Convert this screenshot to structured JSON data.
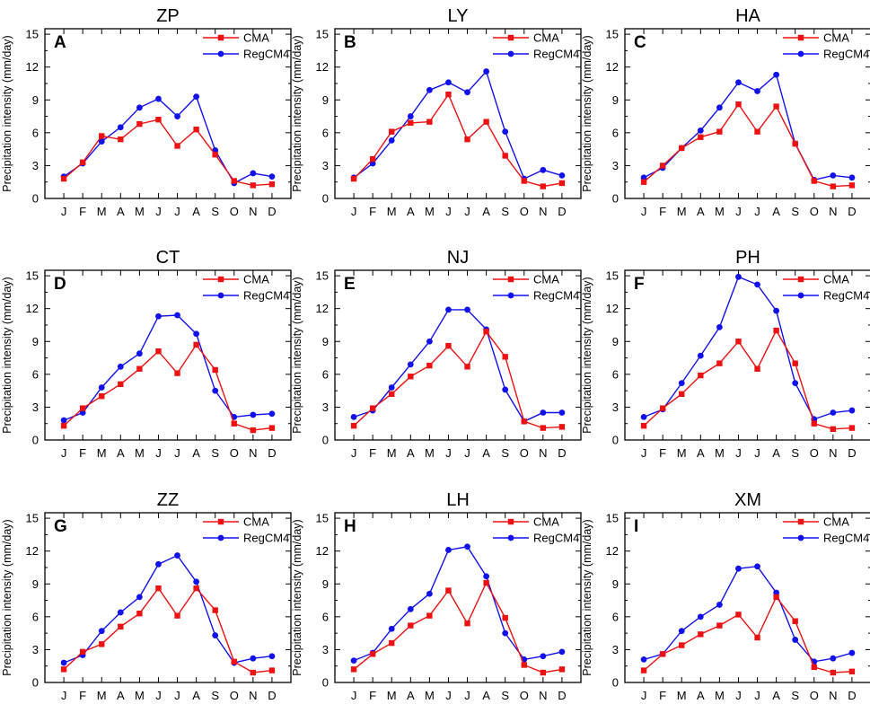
{
  "figure": {
    "months": [
      "J",
      "F",
      "M",
      "A",
      "M",
      "J",
      "J",
      "A",
      "S",
      "O",
      "N",
      "D"
    ],
    "ylabel": "Precipitation intensity (mm/day)",
    "yticks": [
      0,
      3,
      6,
      9,
      12,
      15
    ],
    "ylim": [
      0,
      15.5
    ],
    "colors": {
      "CMA": "#ee1111",
      "RegCM4": "#1111ee"
    }
  },
  "chart_data": [
    {
      "type": "line",
      "title": "ZP",
      "panel_letter": "A",
      "categories": [
        "J",
        "F",
        "M",
        "A",
        "M",
        "J",
        "J",
        "A",
        "S",
        "O",
        "N",
        "D"
      ],
      "series": [
        {
          "name": "CMA",
          "values": [
            1.8,
            3.3,
            5.7,
            5.4,
            6.8,
            7.2,
            4.8,
            6.3,
            4.0,
            1.6,
            1.2,
            1.3
          ]
        },
        {
          "name": "RegCM4",
          "values": [
            2.0,
            3.2,
            5.2,
            6.5,
            8.3,
            9.1,
            7.5,
            9.3,
            4.4,
            1.4,
            2.3,
            2.0
          ]
        }
      ]
    },
    {
      "type": "line",
      "title": "LY",
      "panel_letter": "B",
      "categories": [
        "J",
        "F",
        "M",
        "A",
        "M",
        "J",
        "J",
        "A",
        "S",
        "O",
        "N",
        "D"
      ],
      "series": [
        {
          "name": "CMA",
          "values": [
            1.8,
            3.6,
            6.1,
            6.9,
            7.0,
            9.5,
            5.4,
            7.0,
            3.9,
            1.6,
            1.1,
            1.4
          ]
        },
        {
          "name": "RegCM4",
          "values": [
            1.9,
            3.2,
            5.3,
            7.5,
            9.9,
            10.6,
            9.7,
            11.6,
            6.1,
            1.8,
            2.6,
            2.1
          ]
        }
      ]
    },
    {
      "type": "line",
      "title": "HA",
      "panel_letter": "C",
      "categories": [
        "J",
        "F",
        "M",
        "A",
        "M",
        "J",
        "J",
        "A",
        "S",
        "O",
        "N",
        "D"
      ],
      "series": [
        {
          "name": "CMA",
          "values": [
            1.5,
            3.0,
            4.6,
            5.6,
            6.1,
            8.6,
            6.1,
            8.4,
            5.0,
            1.6,
            1.1,
            1.2
          ]
        },
        {
          "name": "RegCM4",
          "values": [
            1.9,
            2.8,
            4.6,
            6.2,
            8.3,
            10.6,
            9.8,
            11.3,
            5.0,
            1.7,
            2.1,
            1.9
          ]
        }
      ]
    },
    {
      "type": "line",
      "title": "CT",
      "panel_letter": "D",
      "categories": [
        "J",
        "F",
        "M",
        "A",
        "M",
        "J",
        "J",
        "A",
        "S",
        "O",
        "N",
        "D"
      ],
      "series": [
        {
          "name": "CMA",
          "values": [
            1.3,
            2.9,
            4.0,
            5.1,
            6.5,
            8.1,
            6.1,
            8.7,
            6.4,
            1.5,
            0.9,
            1.1
          ]
        },
        {
          "name": "RegCM4",
          "values": [
            1.8,
            2.5,
            4.8,
            6.7,
            7.9,
            11.3,
            11.4,
            9.7,
            4.5,
            2.1,
            2.3,
            2.4
          ]
        }
      ]
    },
    {
      "type": "line",
      "title": "NJ",
      "panel_letter": "E",
      "categories": [
        "J",
        "F",
        "M",
        "A",
        "M",
        "J",
        "J",
        "A",
        "S",
        "O",
        "N",
        "D"
      ],
      "series": [
        {
          "name": "CMA",
          "values": [
            1.3,
            2.9,
            4.2,
            5.8,
            6.8,
            8.6,
            6.7,
            9.9,
            7.6,
            1.7,
            1.1,
            1.2
          ]
        },
        {
          "name": "RegCM4",
          "values": [
            2.1,
            2.7,
            4.8,
            6.9,
            9.0,
            11.9,
            11.9,
            10.1,
            4.6,
            1.7,
            2.5,
            2.5
          ]
        }
      ]
    },
    {
      "type": "line",
      "title": "PH",
      "panel_letter": "F",
      "categories": [
        "J",
        "F",
        "M",
        "A",
        "M",
        "J",
        "J",
        "A",
        "S",
        "O",
        "N",
        "D"
      ],
      "series": [
        {
          "name": "CMA",
          "values": [
            1.3,
            2.9,
            4.2,
            5.9,
            7.0,
            9.0,
            6.5,
            10.0,
            7.0,
            1.5,
            1.0,
            1.1
          ]
        },
        {
          "name": "RegCM4",
          "values": [
            2.1,
            2.8,
            5.2,
            7.7,
            10.3,
            14.9,
            14.2,
            11.8,
            5.2,
            1.9,
            2.5,
            2.7
          ]
        }
      ]
    },
    {
      "type": "line",
      "title": "ZZ",
      "panel_letter": "G",
      "categories": [
        "J",
        "F",
        "M",
        "A",
        "M",
        "J",
        "J",
        "A",
        "S",
        "O",
        "N",
        "D"
      ],
      "series": [
        {
          "name": "CMA",
          "values": [
            1.2,
            2.8,
            3.5,
            5.1,
            6.3,
            8.6,
            6.1,
            8.6,
            6.6,
            1.9,
            0.9,
            1.1
          ]
        },
        {
          "name": "RegCM4",
          "values": [
            1.8,
            2.5,
            4.7,
            6.4,
            7.8,
            10.8,
            11.6,
            9.2,
            4.3,
            1.8,
            2.2,
            2.4
          ]
        }
      ]
    },
    {
      "type": "line",
      "title": "LH",
      "panel_letter": "H",
      "categories": [
        "J",
        "F",
        "M",
        "A",
        "M",
        "J",
        "J",
        "A",
        "S",
        "O",
        "N",
        "D"
      ],
      "series": [
        {
          "name": "CMA",
          "values": [
            1.2,
            2.6,
            3.6,
            5.2,
            6.1,
            8.4,
            5.4,
            9.1,
            5.9,
            1.6,
            0.9,
            1.2
          ]
        },
        {
          "name": "RegCM4",
          "values": [
            2.0,
            2.7,
            4.9,
            6.7,
            8.1,
            12.1,
            12.4,
            9.7,
            4.5,
            2.1,
            2.4,
            2.8
          ]
        }
      ]
    },
    {
      "type": "line",
      "title": "XM",
      "panel_letter": "I",
      "categories": [
        "J",
        "F",
        "M",
        "A",
        "M",
        "J",
        "J",
        "A",
        "S",
        "O",
        "N",
        "D"
      ],
      "series": [
        {
          "name": "CMA",
          "values": [
            1.1,
            2.6,
            3.4,
            4.4,
            5.2,
            6.2,
            4.1,
            7.8,
            5.6,
            1.4,
            0.9,
            1.0
          ]
        },
        {
          "name": "RegCM4",
          "values": [
            2.1,
            2.6,
            4.7,
            6.0,
            7.1,
            10.4,
            10.6,
            8.2,
            3.9,
            1.9,
            2.2,
            2.7
          ]
        }
      ]
    }
  ]
}
